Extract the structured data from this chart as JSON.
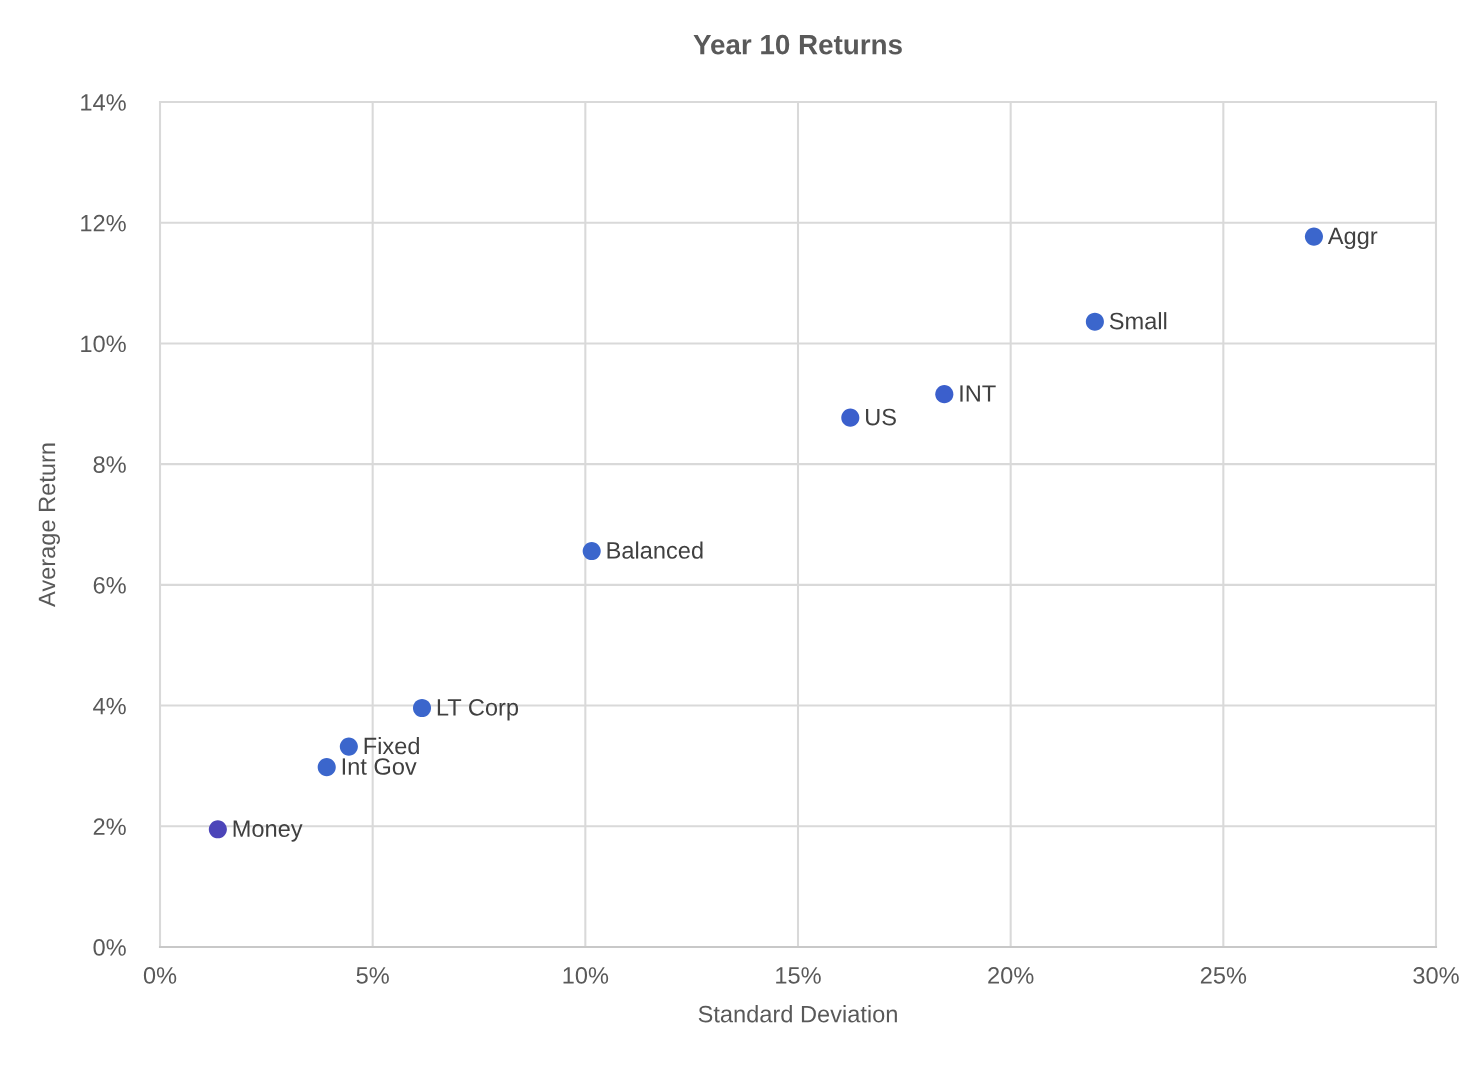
{
  "chart_data": {
    "type": "scatter",
    "title": "Year 10 Returns",
    "xlabel": "Standard Deviation",
    "ylabel": "Average Return",
    "x": [
      1.36,
      3.92,
      4.44,
      6.16,
      10.15,
      16.23,
      18.44,
      21.98,
      27.13
    ],
    "series": [
      {
        "colors": [
          "#4c45b9",
          "#3b66cc",
          "#3b66cc",
          "#3b66cc",
          "#3b66cc",
          "#3b5fcc",
          "#3b5fcc",
          "#3b66cc",
          "#3b66cc"
        ],
        "values": [
          1.95,
          2.98,
          3.32,
          3.96,
          6.56,
          8.77,
          9.16,
          10.36,
          11.77
        ]
      }
    ],
    "annotations": [
      {
        "text": "Money",
        "x": 1.36,
        "y": 1.95
      },
      {
        "text": "Int Gov",
        "x": 3.92,
        "y": 2.98
      },
      {
        "text": "Fixed",
        "x": 4.44,
        "y": 3.32
      },
      {
        "text": "LT Corp",
        "x": 6.16,
        "y": 3.96
      },
      {
        "text": "Balanced",
        "x": 10.15,
        "y": 6.56
      },
      {
        "text": "US",
        "x": 16.23,
        "y": 8.77
      },
      {
        "text": "INT",
        "x": 18.44,
        "y": 9.16
      },
      {
        "text": "Small",
        "x": 21.98,
        "y": 10.36
      },
      {
        "text": "Aggr",
        "x": 27.13,
        "y": 11.77
      }
    ],
    "xlim": [
      0,
      30
    ],
    "ylim": [
      0,
      14
    ],
    "xticks": [
      {
        "value": 0,
        "label": "0%"
      },
      {
        "value": 5,
        "label": "5%"
      },
      {
        "value": 10,
        "label": "10%"
      },
      {
        "value": 15,
        "label": "15%"
      },
      {
        "value": 20,
        "label": "20%"
      },
      {
        "value": 25,
        "label": "25%"
      },
      {
        "value": 30,
        "label": "30%"
      }
    ],
    "yticks": [
      {
        "value": 0,
        "label": "0%"
      },
      {
        "value": 2,
        "label": "2%"
      },
      {
        "value": 4,
        "label": "4%"
      },
      {
        "value": 6,
        "label": "6%"
      },
      {
        "value": 8,
        "label": "8%"
      },
      {
        "value": 10,
        "label": "10%"
      },
      {
        "value": 12,
        "label": "12%"
      },
      {
        "value": 14,
        "label": "14%"
      }
    ],
    "grid": true,
    "marker": "circle"
  }
}
